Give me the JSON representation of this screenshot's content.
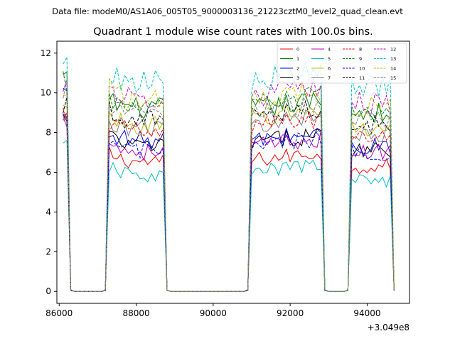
{
  "chart_data": {
    "type": "line",
    "suptitle": "Data file: modeM0/AS1A06_005T05_9000003136_21223cztM0_level2_quad_clean.evt",
    "title": "Quadrant 1 module wise count rates with 100.0s bins.",
    "xlabel": "",
    "ylabel": "",
    "x_offset_label": "+3.049e8",
    "xlim": [
      85940,
      95100
    ],
    "ylim": [
      -0.6,
      12.6
    ],
    "xticks": [
      86000,
      88000,
      90000,
      92000,
      94000
    ],
    "xtick_labels": [
      "86000",
      "88000",
      "90000",
      "92000",
      "94000"
    ],
    "yticks": [
      0,
      2,
      4,
      6,
      8,
      10,
      12
    ],
    "ytick_labels": [
      "0",
      "2",
      "4",
      "6",
      "8",
      "10",
      "12"
    ],
    "segments": [
      {
        "start": 86100,
        "end": 86200
      },
      {
        "start": 87300,
        "end": 88700
      },
      {
        "start": 91000,
        "end": 92800
      },
      {
        "start": 93600,
        "end": 94600
      }
    ],
    "series": [
      {
        "name": "0",
        "color": "#ff0000",
        "dash": "solid",
        "levels": [
          8.5,
          6.5,
          6.6,
          6.3
        ]
      },
      {
        "name": "1",
        "color": "#008000",
        "dash": "solid",
        "levels": [
          10.7,
          9.2,
          9.2,
          9.0
        ]
      },
      {
        "name": "2",
        "color": "#0000ff",
        "dash": "solid",
        "levels": [
          10.0,
          7.6,
          7.6,
          7.3
        ]
      },
      {
        "name": "3",
        "color": "#000000",
        "dash": "solid",
        "levels": [
          8.7,
          7.3,
          7.5,
          7.2
        ]
      },
      {
        "name": "4",
        "color": "#c000c0",
        "dash": "solid",
        "levels": [
          8.6,
          7.0,
          7.3,
          7.0
        ]
      },
      {
        "name": "5",
        "color": "#00bfbf",
        "dash": "solid",
        "levels": [
          7.2,
          5.8,
          6.0,
          5.6
        ]
      },
      {
        "name": "6",
        "color": "#bfbf00",
        "dash": "solid",
        "levels": [
          9.0,
          8.3,
          8.7,
          8.2
        ]
      },
      {
        "name": "7",
        "color": "#7f7f7f",
        "dash": "solid",
        "levels": [
          8.3,
          8.2,
          8.4,
          8.0
        ]
      },
      {
        "name": "8",
        "color": "#ff0000",
        "dash": "dashed",
        "levels": [
          8.8,
          8.0,
          8.3,
          7.9
        ]
      },
      {
        "name": "9",
        "color": "#008000",
        "dash": "dashed",
        "levels": [
          10.5,
          9.3,
          9.4,
          9.1
        ]
      },
      {
        "name": "10",
        "color": "#0000ff",
        "dash": "dashed",
        "levels": [
          8.4,
          7.1,
          7.3,
          7.0
        ]
      },
      {
        "name": "11",
        "color": "#000000",
        "dash": "dashed",
        "levels": [
          9.5,
          8.6,
          8.8,
          8.4
        ]
      },
      {
        "name": "12",
        "color": "#c000c0",
        "dash": "dashed",
        "levels": [
          10.6,
          9.7,
          9.8,
          9.5
        ]
      },
      {
        "name": "13",
        "color": "#00bfbf",
        "dash": "dashed",
        "levels": [
          12.0,
          10.5,
          10.6,
          10.3
        ]
      },
      {
        "name": "14",
        "color": "#bfbf00",
        "dash": "dashed",
        "levels": [
          10.3,
          9.7,
          9.6,
          9.3
        ]
      },
      {
        "name": "15",
        "color": "#7f7f7f",
        "dash": "dashed",
        "levels": [
          10.1,
          8.9,
          9.0,
          8.7
        ]
      }
    ],
    "legend_position": "top-right"
  }
}
